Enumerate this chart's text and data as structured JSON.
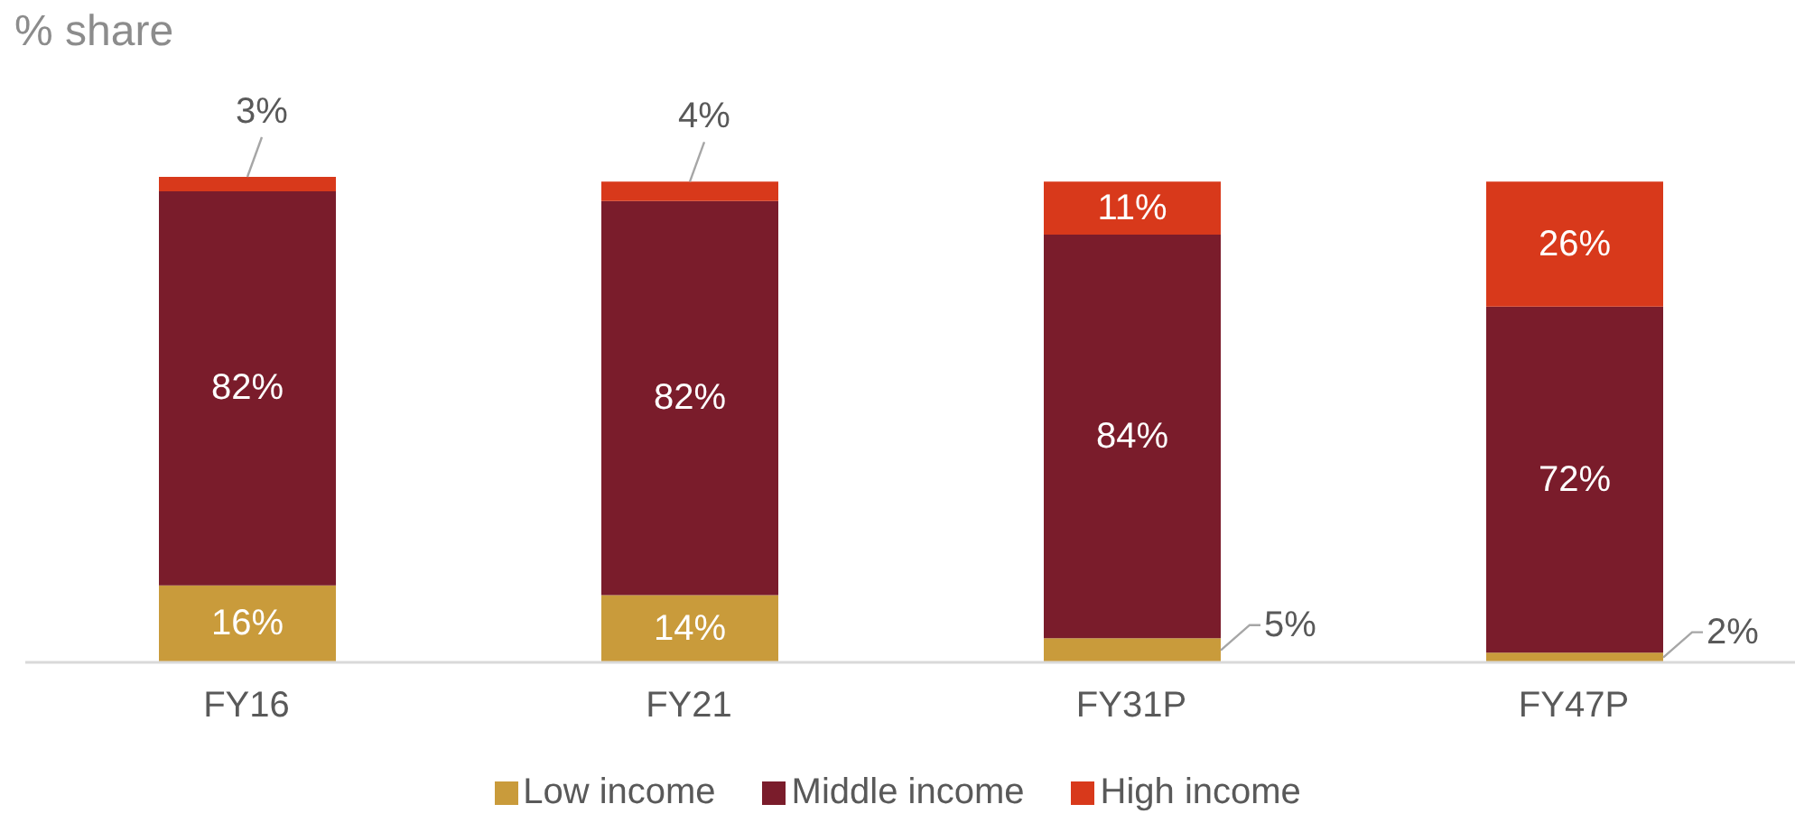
{
  "chart_data": {
    "type": "bar",
    "title": "% share",
    "categories": [
      "FY16",
      "FY21",
      "FY31P",
      "FY47P"
    ],
    "stacked": true,
    "legend": "bottom",
    "series": [
      {
        "name": "Low income",
        "color": "#c99b3b",
        "values": [
          16,
          14,
          5,
          2
        ],
        "value_labels": [
          "16%",
          "14%",
          "5%",
          "2%"
        ]
      },
      {
        "name": "Middle income",
        "color": "#7a1c2b",
        "values": [
          82,
          82,
          84,
          72
        ],
        "value_labels": [
          "82%",
          "82%",
          "84%",
          "72%"
        ]
      },
      {
        "name": "High income",
        "color": "#d8391b",
        "values": [
          3,
          4,
          11,
          26
        ],
        "value_labels": [
          "3%",
          "4%",
          "11%",
          "26%"
        ]
      }
    ]
  }
}
